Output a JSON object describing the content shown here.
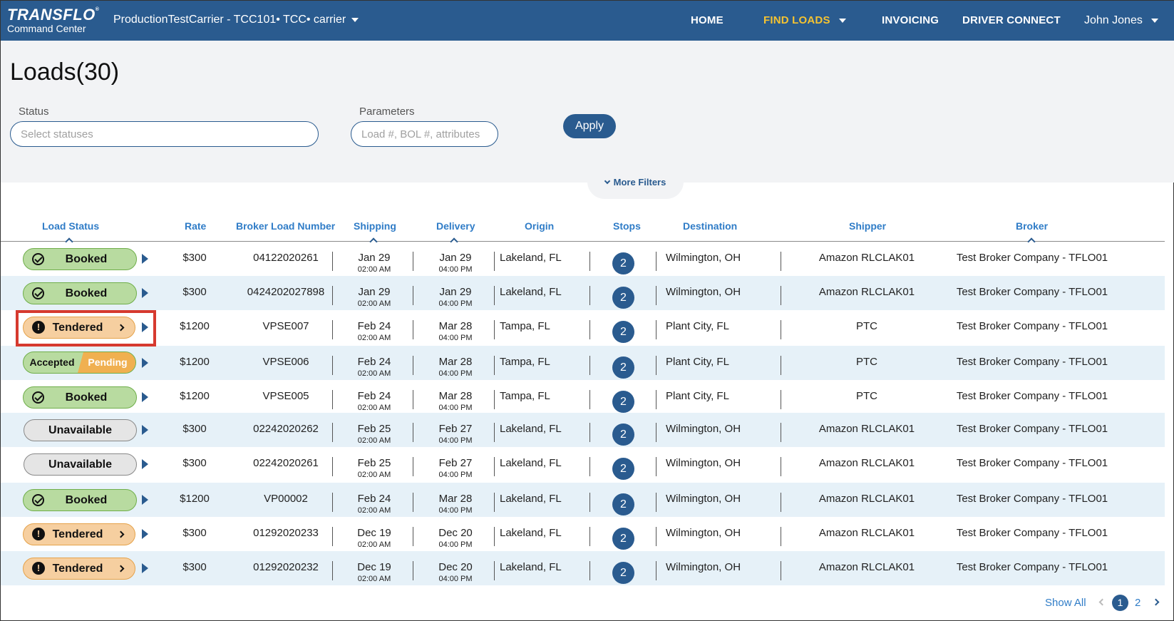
{
  "header": {
    "logo_brand": "TRANSFLO",
    "logo_mark": "®",
    "logo_sub": "Command Center",
    "carrier": "ProductionTestCarrier - TCC101• TCC• carrier",
    "nav": {
      "home": "HOME",
      "find_loads": "FIND LOADS",
      "invoicing": "INVOICING",
      "driver_connect": "DRIVER CONNECT"
    },
    "user": "John Jones",
    "accent_color": "#f5c331",
    "bar_color": "#2a5b8f"
  },
  "filters": {
    "page_title": "Loads(30)",
    "status_label": "Status",
    "status_placeholder": "Select statuses",
    "parameters_label": "Parameters",
    "parameters_placeholder": "Load #, BOL #, attributes",
    "apply_label": "Apply",
    "more_filters_label": "More Filters"
  },
  "table": {
    "columns": {
      "load_status": "Load Status",
      "rate": "Rate",
      "broker_load_number": "Broker Load Number",
      "shipping": "Shipping",
      "delivery": "Delivery",
      "origin": "Origin",
      "stops": "Stops",
      "destination": "Destination",
      "shipper": "Shipper",
      "broker": "Broker"
    },
    "rows": [
      {
        "status": "Booked",
        "rate": "$300",
        "bln": "04122020261",
        "ship_date": "Jan 29",
        "ship_time": "02:00 AM",
        "del_date": "Jan 29",
        "del_time": "04:00 PM",
        "origin": "Lakeland, FL",
        "stops": "2",
        "destination": "Wilmington, OH",
        "shipper": "Amazon RLCLAK01",
        "broker": "Test Broker Company - TFLO01"
      },
      {
        "status": "Booked",
        "rate": "$300",
        "bln": "0424202027898",
        "ship_date": "Jan 29",
        "ship_time": "02:00 AM",
        "del_date": "Jan 29",
        "del_time": "04:00 PM",
        "origin": "Lakeland, FL",
        "stops": "2",
        "destination": "Wilmington, OH",
        "shipper": "Amazon RLCLAK01",
        "broker": "Test Broker Company - TFLO01"
      },
      {
        "status": "Tendered",
        "rate": "$1200",
        "bln": "VPSE007",
        "ship_date": "Feb 24",
        "ship_time": "02:00 AM",
        "del_date": "Mar 28",
        "del_time": "04:00 PM",
        "origin": "Tampa, FL",
        "stops": "2",
        "destination": "Plant City, FL",
        "shipper": "PTC",
        "broker": "Test Broker Company - TFLO01"
      },
      {
        "status_left": "Accepted",
        "status_right": "Pending",
        "rate": "$1200",
        "bln": "VPSE006",
        "ship_date": "Feb 24",
        "ship_time": "02:00 AM",
        "del_date": "Mar 28",
        "del_time": "04:00 PM",
        "origin": "Tampa, FL",
        "stops": "2",
        "destination": "Plant City, FL",
        "shipper": "PTC",
        "broker": "Test Broker Company - TFLO01"
      },
      {
        "status": "Booked",
        "rate": "$1200",
        "bln": "VPSE005",
        "ship_date": "Feb 24",
        "ship_time": "02:00 AM",
        "del_date": "Mar 28",
        "del_time": "04:00 PM",
        "origin": "Tampa, FL",
        "stops": "2",
        "destination": "Plant City, FL",
        "shipper": "PTC",
        "broker": "Test Broker Company - TFLO01"
      },
      {
        "status": "Unavailable",
        "rate": "$300",
        "bln": "02242020262",
        "ship_date": "Feb 25",
        "ship_time": "02:00 AM",
        "del_date": "Feb 27",
        "del_time": "04:00 PM",
        "origin": "Lakeland, FL",
        "stops": "2",
        "destination": "Wilmington, OH",
        "shipper": "Amazon RLCLAK01",
        "broker": "Test Broker Company - TFLO01"
      },
      {
        "status": "Unavailable",
        "rate": "$300",
        "bln": "02242020261",
        "ship_date": "Feb 25",
        "ship_time": "02:00 AM",
        "del_date": "Feb 27",
        "del_time": "04:00 PM",
        "origin": "Lakeland, FL",
        "stops": "2",
        "destination": "Wilmington, OH",
        "shipper": "Amazon RLCLAK01",
        "broker": "Test Broker Company - TFLO01"
      },
      {
        "status": "Booked",
        "rate": "$1200",
        "bln": "VP00002",
        "ship_date": "Feb 24",
        "ship_time": "02:00 AM",
        "del_date": "Mar 28",
        "del_time": "04:00 PM",
        "origin": "Lakeland, FL",
        "stops": "2",
        "destination": "Wilmington, OH",
        "shipper": "Amazon RLCLAK01",
        "broker": "Test Broker Company - TFLO01"
      },
      {
        "status": "Tendered",
        "rate": "$300",
        "bln": "01292020233",
        "ship_date": "Dec 19",
        "ship_time": "02:00 AM",
        "del_date": "Dec 20",
        "del_time": "04:00 PM",
        "origin": "Lakeland, FL",
        "stops": "2",
        "destination": "Wilmington, OH",
        "shipper": "Amazon RLCLAK01",
        "broker": "Test Broker Company - TFLO01"
      },
      {
        "status": "Tendered",
        "rate": "$300",
        "bln": "01292020232",
        "ship_date": "Dec 19",
        "ship_time": "02:00 AM",
        "del_date": "Dec 20",
        "del_time": "04:00 PM",
        "origin": "Lakeland, FL",
        "stops": "2",
        "destination": "Wilmington, OH",
        "shipper": "Amazon RLCLAK01",
        "broker": "Test Broker Company - TFLO01"
      }
    ],
    "alert_glyph": "!"
  },
  "pagination": {
    "show_all": "Show All",
    "current_page": "1",
    "next_page": "2"
  }
}
